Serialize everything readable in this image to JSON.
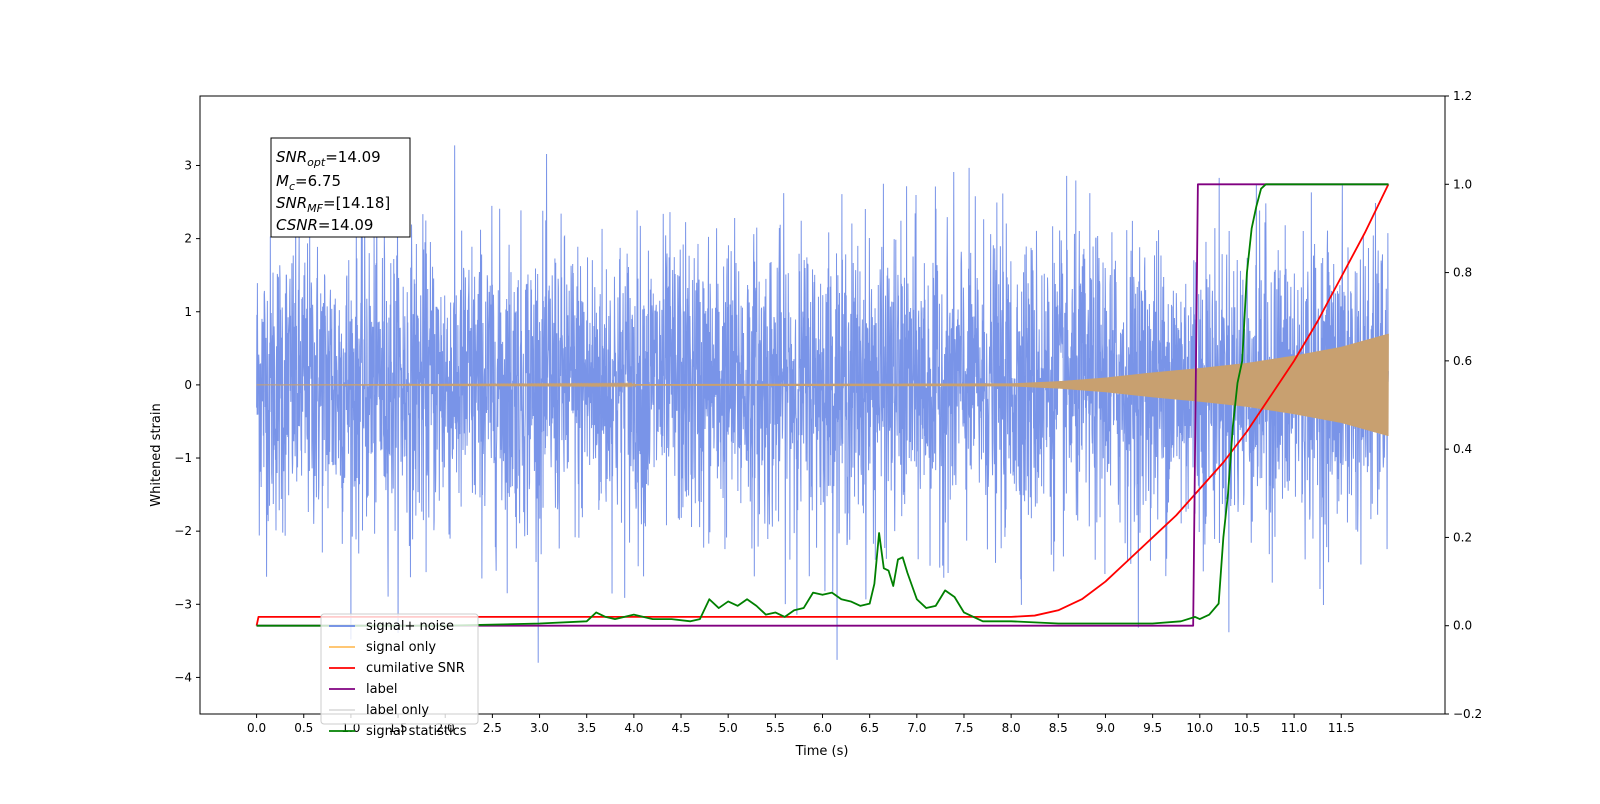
{
  "chart_data": {
    "type": "line",
    "xlabel": "Time (s)",
    "ylabel": "Whitened strain",
    "xlim": [
      -0.6,
      12.6
    ],
    "ylim": [
      -4.5,
      3.95
    ],
    "y2lim": [
      -0.2,
      1.2
    ],
    "x_ticks": [
      "0.0",
      "0.5",
      "1.0",
      "1.5",
      "2.0",
      "2.5",
      "3.0",
      "3.5",
      "4.0",
      "4.5",
      "5.0",
      "5.5",
      "6.0",
      "6.5",
      "7.0",
      "7.5",
      "8.0",
      "8.5",
      "9.0",
      "9.5",
      "10.0",
      "10.5",
      "11.0",
      "11.5"
    ],
    "y_ticks": [
      "3",
      "2",
      "1",
      "0",
      "−1",
      "−2",
      "−3",
      "−4"
    ],
    "y2_ticks": [
      "1.2",
      "1.0",
      "0.8",
      "0.6",
      "0.4",
      "0.2",
      "0.0",
      "−0.2"
    ],
    "annotation": {
      "line1_main": "SNR",
      "line1_sub": "opt",
      "line1_val": "=14.09",
      "line2_main": "M",
      "line2_sub": "c",
      "line2_val": "=6.75",
      "line3_main": "SNR",
      "line3_sub": "MF",
      "line3_val": "=[14.18]",
      "line4_main": "CSNR",
      "line4_val": "=14.09"
    },
    "legend": [
      {
        "label": "signal+ noise",
        "color": "#6a88e6"
      },
      {
        "label": "signal only",
        "color": "#ffbf60"
      },
      {
        "label": "cumilative SNR",
        "color": "#ff0000"
      },
      {
        "label": "label",
        "color": "#800080"
      },
      {
        "label": "label only",
        "color": "#dddddd"
      },
      {
        "label": "signal statistics",
        "color": "#008000"
      }
    ],
    "legend_position": "lower-left",
    "series": [
      {
        "name": "signal+ noise",
        "axis": "left",
        "color": "#6a88e6",
        "x_range": [
          0,
          12
        ],
        "envelope_p": [
          3.5,
          -2.7
        ],
        "description_noise_std": 1.0
      },
      {
        "name": "signal only",
        "axis": "left",
        "color": "#c8a070",
        "x_range": [
          0,
          12
        ],
        "amplitude_at_end": 0.7,
        "amplitude_profile": [
          [
            0,
            0.0
          ],
          [
            8,
            0.02
          ],
          [
            8.5,
            0.05
          ],
          [
            9,
            0.1
          ],
          [
            9.5,
            0.17
          ],
          [
            10,
            0.23
          ],
          [
            10.5,
            0.3
          ],
          [
            11,
            0.4
          ],
          [
            11.5,
            0.52
          ],
          [
            12,
            0.7
          ]
        ]
      },
      {
        "name": "cumilative SNR",
        "axis": "right",
        "color": "#ff0000",
        "x": [
          0,
          0.02,
          0.5,
          1,
          2,
          3,
          4,
          5,
          6,
          7,
          7.5,
          8,
          8.25,
          8.5,
          8.75,
          9,
          9.25,
          9.5,
          9.75,
          10,
          10.25,
          10.5,
          10.75,
          11,
          11.25,
          11.5,
          11.75,
          12
        ],
        "y": [
          0.0,
          0.02,
          0.02,
          0.02,
          0.02,
          0.02,
          0.02,
          0.02,
          0.02,
          0.02,
          0.02,
          0.02,
          0.023,
          0.035,
          0.06,
          0.1,
          0.15,
          0.2,
          0.25,
          0.31,
          0.37,
          0.44,
          0.52,
          0.6,
          0.69,
          0.79,
          0.89,
          1.0
        ]
      },
      {
        "name": "label",
        "axis": "right",
        "color": "#800080",
        "x": [
          0,
          9.93,
          9.98,
          12
        ],
        "y": [
          0.0,
          0.0,
          1.0,
          1.0
        ]
      },
      {
        "name": "signal statistics",
        "axis": "right",
        "color": "#008000",
        "x": [
          0,
          1,
          2,
          3,
          3.5,
          3.6,
          3.7,
          3.8,
          4.0,
          4.1,
          4.2,
          4.4,
          4.6,
          4.7,
          4.8,
          4.9,
          5.0,
          5.1,
          5.2,
          5.3,
          5.4,
          5.5,
          5.6,
          5.7,
          5.8,
          5.9,
          6.0,
          6.1,
          6.2,
          6.3,
          6.4,
          6.5,
          6.55,
          6.6,
          6.65,
          6.7,
          6.75,
          6.8,
          6.85,
          6.9,
          6.95,
          7.0,
          7.1,
          7.2,
          7.3,
          7.4,
          7.5,
          7.7,
          8.0,
          8.5,
          9.0,
          9.5,
          9.8,
          9.95,
          10.0,
          10.1,
          10.2,
          10.25,
          10.3,
          10.35,
          10.4,
          10.45,
          10.5,
          10.55,
          10.6,
          10.65,
          10.7,
          10.8,
          11,
          12
        ],
        "y": [
          0,
          0,
          0,
          0.005,
          0.01,
          0.03,
          0.02,
          0.015,
          0.025,
          0.02,
          0.015,
          0.015,
          0.01,
          0.015,
          0.06,
          0.04,
          0.055,
          0.045,
          0.06,
          0.045,
          0.025,
          0.03,
          0.02,
          0.035,
          0.04,
          0.075,
          0.07,
          0.075,
          0.06,
          0.055,
          0.045,
          0.05,
          0.095,
          0.21,
          0.13,
          0.125,
          0.09,
          0.15,
          0.155,
          0.12,
          0.09,
          0.06,
          0.04,
          0.045,
          0.08,
          0.065,
          0.03,
          0.01,
          0.01,
          0.005,
          0.005,
          0.005,
          0.01,
          0.02,
          0.015,
          0.025,
          0.05,
          0.2,
          0.3,
          0.45,
          0.55,
          0.6,
          0.8,
          0.9,
          0.95,
          0.99,
          1.0,
          1.0,
          1.0,
          1.0
        ]
      }
    ]
  }
}
